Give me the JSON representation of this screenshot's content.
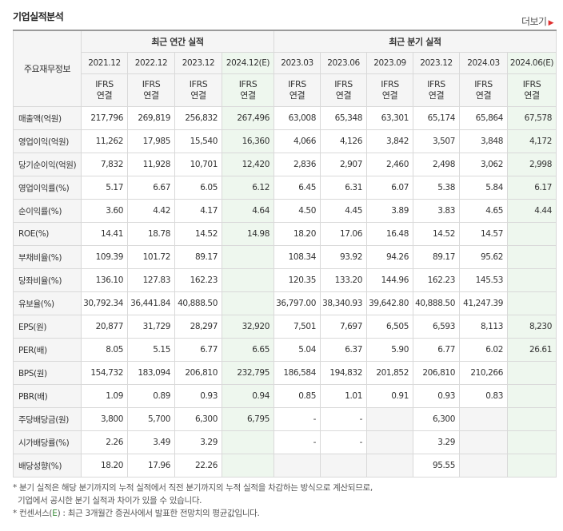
{
  "header": {
    "title": "기업실적분석",
    "more_label": "더보기"
  },
  "table": {
    "corner_label": "주요재무정보",
    "group_annual": "최근 연간 실적",
    "group_quarter": "최근 분기 실적",
    "periods": [
      "2021.12",
      "2022.12",
      "2023.12",
      "2024.12(E)",
      "2023.03",
      "2023.06",
      "2023.09",
      "2023.12",
      "2024.03",
      "2024.06(E)"
    ],
    "ifrs_line1": "IFRS",
    "ifrs_line2": "연결",
    "rows": [
      {
        "label": "매출액(억원)",
        "values": [
          "217,796",
          "269,819",
          "256,832",
          "267,496",
          "63,008",
          "65,348",
          "63,301",
          "65,174",
          "65,864",
          "67,578"
        ]
      },
      {
        "label": "영업이익(억원)",
        "values": [
          "11,262",
          "17,985",
          "15,540",
          "16,360",
          "4,066",
          "4,126",
          "3,842",
          "3,507",
          "3,848",
          "4,172"
        ]
      },
      {
        "label": "당기순이익(억원)",
        "values": [
          "7,832",
          "11,928",
          "10,701",
          "12,420",
          "2,836",
          "2,907",
          "2,460",
          "2,498",
          "3,062",
          "2,998"
        ]
      },
      {
        "label": "영업이익률(%)",
        "values": [
          "5.17",
          "6.67",
          "6.05",
          "6.12",
          "6.45",
          "6.31",
          "6.07",
          "5.38",
          "5.84",
          "6.17"
        ]
      },
      {
        "label": "순이익률(%)",
        "values": [
          "3.60",
          "4.42",
          "4.17",
          "4.64",
          "4.50",
          "4.45",
          "3.89",
          "3.83",
          "4.65",
          "4.44"
        ]
      },
      {
        "label": "ROE(%)",
        "values": [
          "14.41",
          "18.78",
          "14.52",
          "14.98",
          "18.20",
          "17.06",
          "16.48",
          "14.52",
          "14.57",
          ""
        ]
      },
      {
        "label": "부채비율(%)",
        "values": [
          "109.39",
          "101.72",
          "89.17",
          "",
          "108.34",
          "93.92",
          "94.26",
          "89.17",
          "95.62",
          ""
        ]
      },
      {
        "label": "당좌비율(%)",
        "values": [
          "136.10",
          "127.83",
          "162.23",
          "",
          "120.35",
          "133.20",
          "144.96",
          "162.23",
          "145.53",
          ""
        ]
      },
      {
        "label": "유보율(%)",
        "values": [
          "30,792.34",
          "36,441.84",
          "40,888.50",
          "",
          "36,797.00",
          "38,340.93",
          "39,642.80",
          "40,888.50",
          "41,247.39",
          ""
        ]
      },
      {
        "label": "EPS(원)",
        "values": [
          "20,877",
          "31,729",
          "28,297",
          "32,920",
          "7,501",
          "7,697",
          "6,505",
          "6,593",
          "8,113",
          "8,230"
        ]
      },
      {
        "label": "PER(배)",
        "values": [
          "8.05",
          "5.15",
          "6.77",
          "6.65",
          "5.04",
          "6.37",
          "5.90",
          "6.77",
          "6.02",
          "26.61"
        ]
      },
      {
        "label": "BPS(원)",
        "values": [
          "154,732",
          "183,094",
          "206,810",
          "232,795",
          "186,584",
          "194,832",
          "201,852",
          "206,810",
          "210,266",
          ""
        ]
      },
      {
        "label": "PBR(배)",
        "values": [
          "1.09",
          "0.89",
          "0.93",
          "0.94",
          "0.85",
          "1.01",
          "0.91",
          "0.93",
          "0.83",
          ""
        ]
      },
      {
        "label": "주당배당금(원)",
        "values": [
          "3,800",
          "5,700",
          "6,300",
          "6,795",
          "-",
          "-",
          "",
          "6,300",
          "",
          ""
        ]
      },
      {
        "label": "시가배당률(%)",
        "values": [
          "2.26",
          "3.49",
          "3.29",
          "",
          "-",
          "-",
          "",
          "3.29",
          "",
          ""
        ]
      },
      {
        "label": "배당성향(%)",
        "values": [
          "18.20",
          "17.96",
          "22.26",
          "",
          "",
          "",
          "",
          "95.55",
          "",
          ""
        ]
      }
    ]
  },
  "notes": {
    "line1": "* 분기 실적은 해당 분기까지의 누적 실적에서 직전 분기까지의 누적 실적을 차감하는 방식으로 계산되므로,",
    "line2": "기업에서 공시한 분기 실적과 차이가 있을 수 있습니다.",
    "line3_pre": "* 컨센서스(",
    "line3_e": "E",
    "line3_post": ") : 최근 3개월간 증권사에서 발표한 전망치의 평균값입니다."
  }
}
